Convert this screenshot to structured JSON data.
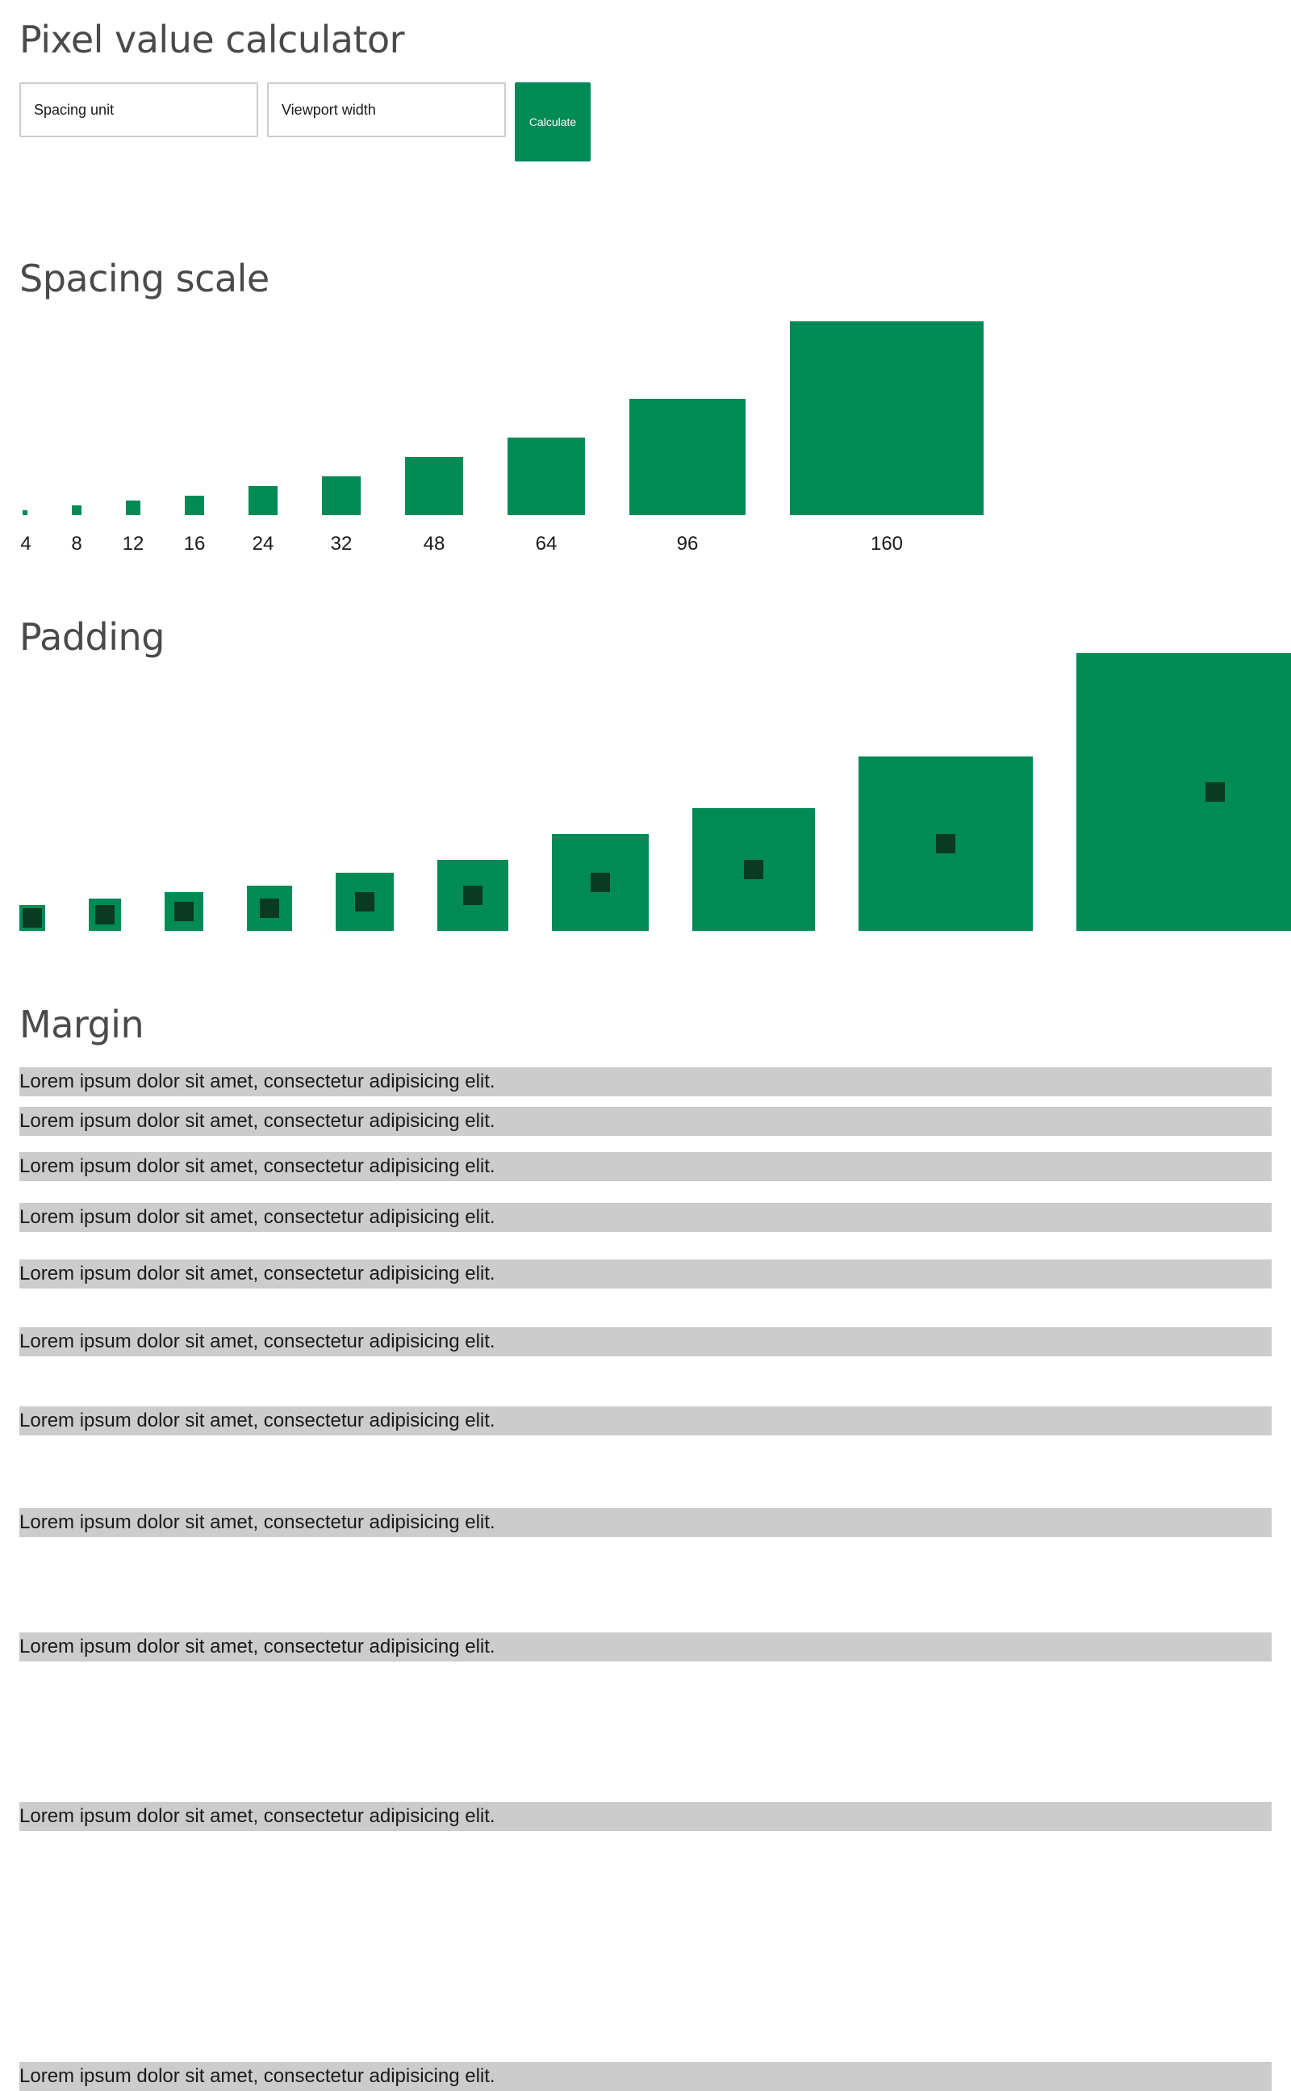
{
  "calculator": {
    "title": "Pixel value calculator",
    "spacing_unit_placeholder": "Spacing unit",
    "viewport_width_placeholder": "Viewport width",
    "calculate_label": "Calculate"
  },
  "spacing_scale": {
    "title": "Spacing scale",
    "values": [
      "4",
      "8",
      "12",
      "16",
      "24",
      "32",
      "48",
      "64",
      "96",
      "160"
    ]
  },
  "padding": {
    "title": "Padding",
    "values": [
      4,
      8,
      12,
      16,
      24,
      32,
      48,
      64,
      96,
      160
    ]
  },
  "margin": {
    "title": "Margin",
    "rows": [
      "Lorem ipsum dolor sit amet, consectetur adipisicing elit.",
      "Lorem ipsum dolor sit amet, consectetur adipisicing elit.",
      "Lorem ipsum dolor sit amet, consectetur adipisicing elit.",
      "Lorem ipsum dolor sit amet, consectetur adipisicing elit.",
      "Lorem ipsum dolor sit amet, consectetur adipisicing elit.",
      "Lorem ipsum dolor sit amet, consectetur adipisicing elit.",
      "Lorem ipsum dolor sit amet, consectetur adipisicing elit.",
      "Lorem ipsum dolor sit amet, consectetur adipisicing elit.",
      "Lorem ipsum dolor sit amet, consectetur adipisicing elit.",
      "Lorem ipsum dolor sit amet, consectetur adipisicing elit.",
      "Lorem ipsum dolor sit amet, consectetur adipisicing elit."
    ],
    "gaps": [
      0,
      4,
      8,
      12,
      16,
      24,
      32,
      48,
      64,
      96,
      160
    ]
  },
  "colors": {
    "green": "#008a55",
    "dark": "#0b3a24",
    "row_bg": "#cccccc",
    "button": "#008a55"
  }
}
